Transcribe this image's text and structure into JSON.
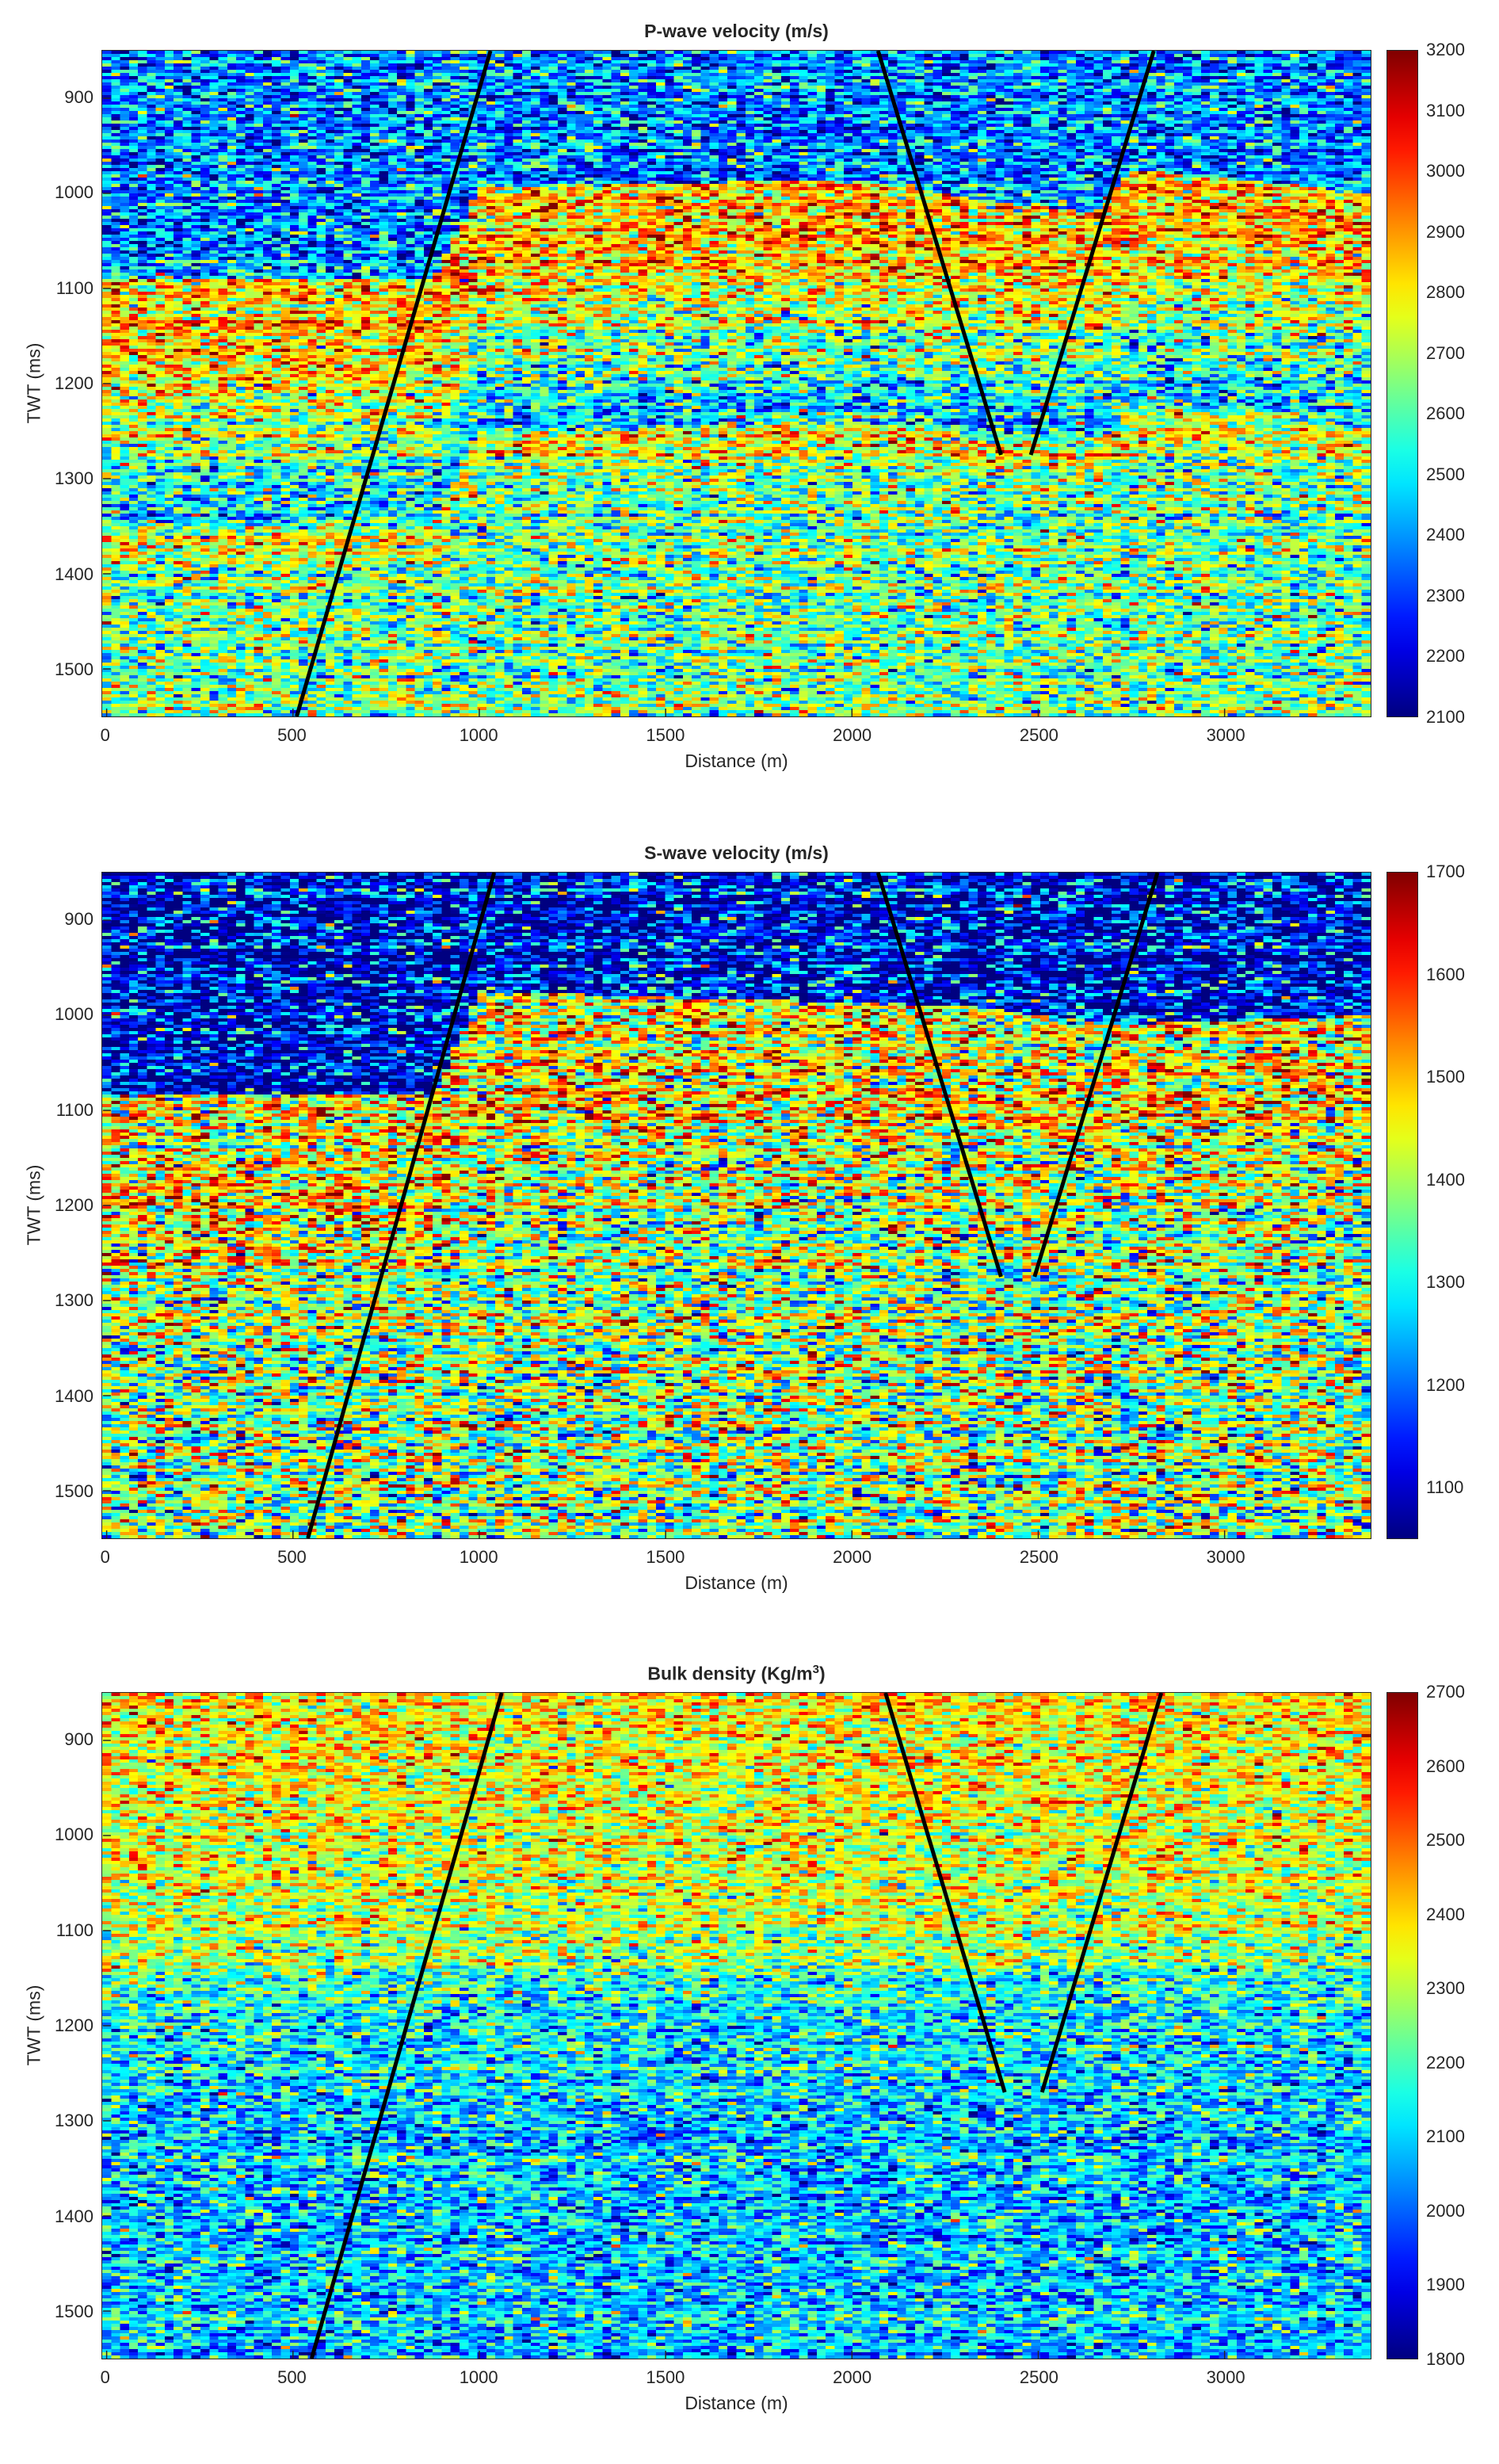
{
  "chart_data": [
    {
      "type": "heatmap",
      "title": "P-wave velocity (m/s)",
      "xlabel": "Distance (m)",
      "ylabel": "TWT (ms)",
      "xlim": [
        -10,
        3390
      ],
      "ylim": [
        850,
        1550
      ],
      "xticks": [
        0,
        500,
        1000,
        1500,
        2000,
        2500,
        3000
      ],
      "yticks": [
        900,
        1000,
        1100,
        1200,
        1300,
        1400,
        1500
      ],
      "colormap": "jet",
      "clim": [
        2100,
        3200
      ],
      "colorbar_ticks": [
        2100,
        2200,
        2300,
        2400,
        2500,
        2600,
        2700,
        2800,
        2900,
        3000,
        3100,
        3200
      ],
      "colorbar_location": "right",
      "faults": [
        [
          [
            1030,
            850
          ],
          [
            510,
            1550
          ]
        ],
        [
          [
            2070,
            850
          ],
          [
            2400,
            1275
          ]
        ],
        [
          [
            2810,
            850
          ],
          [
            2480,
            1275
          ]
        ]
      ],
      "top_boundary": [
        [
          0,
          1090
        ],
        [
          880,
          1090
        ],
        [
          1000,
          995
        ],
        [
          2000,
          985
        ],
        [
          2400,
          1010
        ],
        [
          2650,
          1020
        ],
        [
          2750,
          975
        ],
        [
          3390,
          1000
        ]
      ],
      "upper_mean": 2380,
      "layers": [
        [
          0,
          2820
        ],
        [
          60,
          2880
        ],
        [
          150,
          2720
        ],
        [
          250,
          2450
        ],
        [
          275,
          2800
        ],
        [
          320,
          2620
        ],
        [
          700,
          2640
        ]
      ],
      "noise_sd": 170
    },
    {
      "type": "heatmap",
      "title": "S-wave velocity (m/s)",
      "xlabel": "Distance (m)",
      "ylabel": "TWT (ms)",
      "xlim": [
        -10,
        3390
      ],
      "ylim": [
        850,
        1550
      ],
      "xticks": [
        0,
        500,
        1000,
        1500,
        2000,
        2500,
        3000
      ],
      "yticks": [
        900,
        1000,
        1100,
        1200,
        1300,
        1400,
        1500
      ],
      "colormap": "jet",
      "clim": [
        1050,
        1700
      ],
      "colorbar_ticks": [
        1100,
        1200,
        1300,
        1400,
        1500,
        1600,
        1700
      ],
      "colorbar_location": "right",
      "faults": [
        [
          [
            1040,
            850
          ],
          [
            540,
            1550
          ]
        ],
        [
          [
            2070,
            850
          ],
          [
            2400,
            1275
          ]
        ],
        [
          [
            2820,
            850
          ],
          [
            2490,
            1275
          ]
        ]
      ],
      "top_boundary": [
        [
          0,
          1085
        ],
        [
          880,
          1085
        ],
        [
          1000,
          975
        ],
        [
          2300,
          990
        ],
        [
          2700,
          1010
        ],
        [
          3390,
          1000
        ]
      ],
      "upper_mean": 1110,
      "layers": [
        [
          0,
          1430
        ],
        [
          100,
          1470
        ],
        [
          250,
          1380
        ],
        [
          700,
          1380
        ]
      ],
      "noise_sd": 130
    },
    {
      "type": "heatmap",
      "title": "Bulk density (Kg/m",
      "title_sup": "3",
      "title_end": ")",
      "xlabel": "Distance (m)",
      "ylabel": "TWT (ms)",
      "xlim": [
        -10,
        3390
      ],
      "ylim": [
        850,
        1550
      ],
      "xticks": [
        0,
        500,
        1000,
        1500,
        2000,
        2500,
        3000
      ],
      "yticks": [
        900,
        1000,
        1100,
        1200,
        1300,
        1400,
        1500
      ],
      "colormap": "jet",
      "clim": [
        1800,
        2700
      ],
      "colorbar_ticks": [
        1800,
        1900,
        2000,
        2100,
        2200,
        2300,
        2400,
        2500,
        2600,
        2700
      ],
      "colorbar_location": "right",
      "faults": [
        [
          [
            1060,
            850
          ],
          [
            550,
            1550
          ]
        ],
        [
          [
            2090,
            850
          ],
          [
            2410,
            1270
          ]
        ],
        [
          [
            2830,
            850
          ],
          [
            2510,
            1270
          ]
        ]
      ],
      "top_boundary": [
        [
          0,
          850
        ],
        [
          3390,
          850
        ]
      ],
      "upper_mean": 2350,
      "layers": [
        [
          0,
          2380
        ],
        [
          150,
          2330
        ],
        [
          270,
          2300
        ],
        [
          330,
          2150
        ],
        [
          420,
          2100
        ],
        [
          700,
          2080
        ]
      ],
      "noise_sd": 120
    }
  ]
}
